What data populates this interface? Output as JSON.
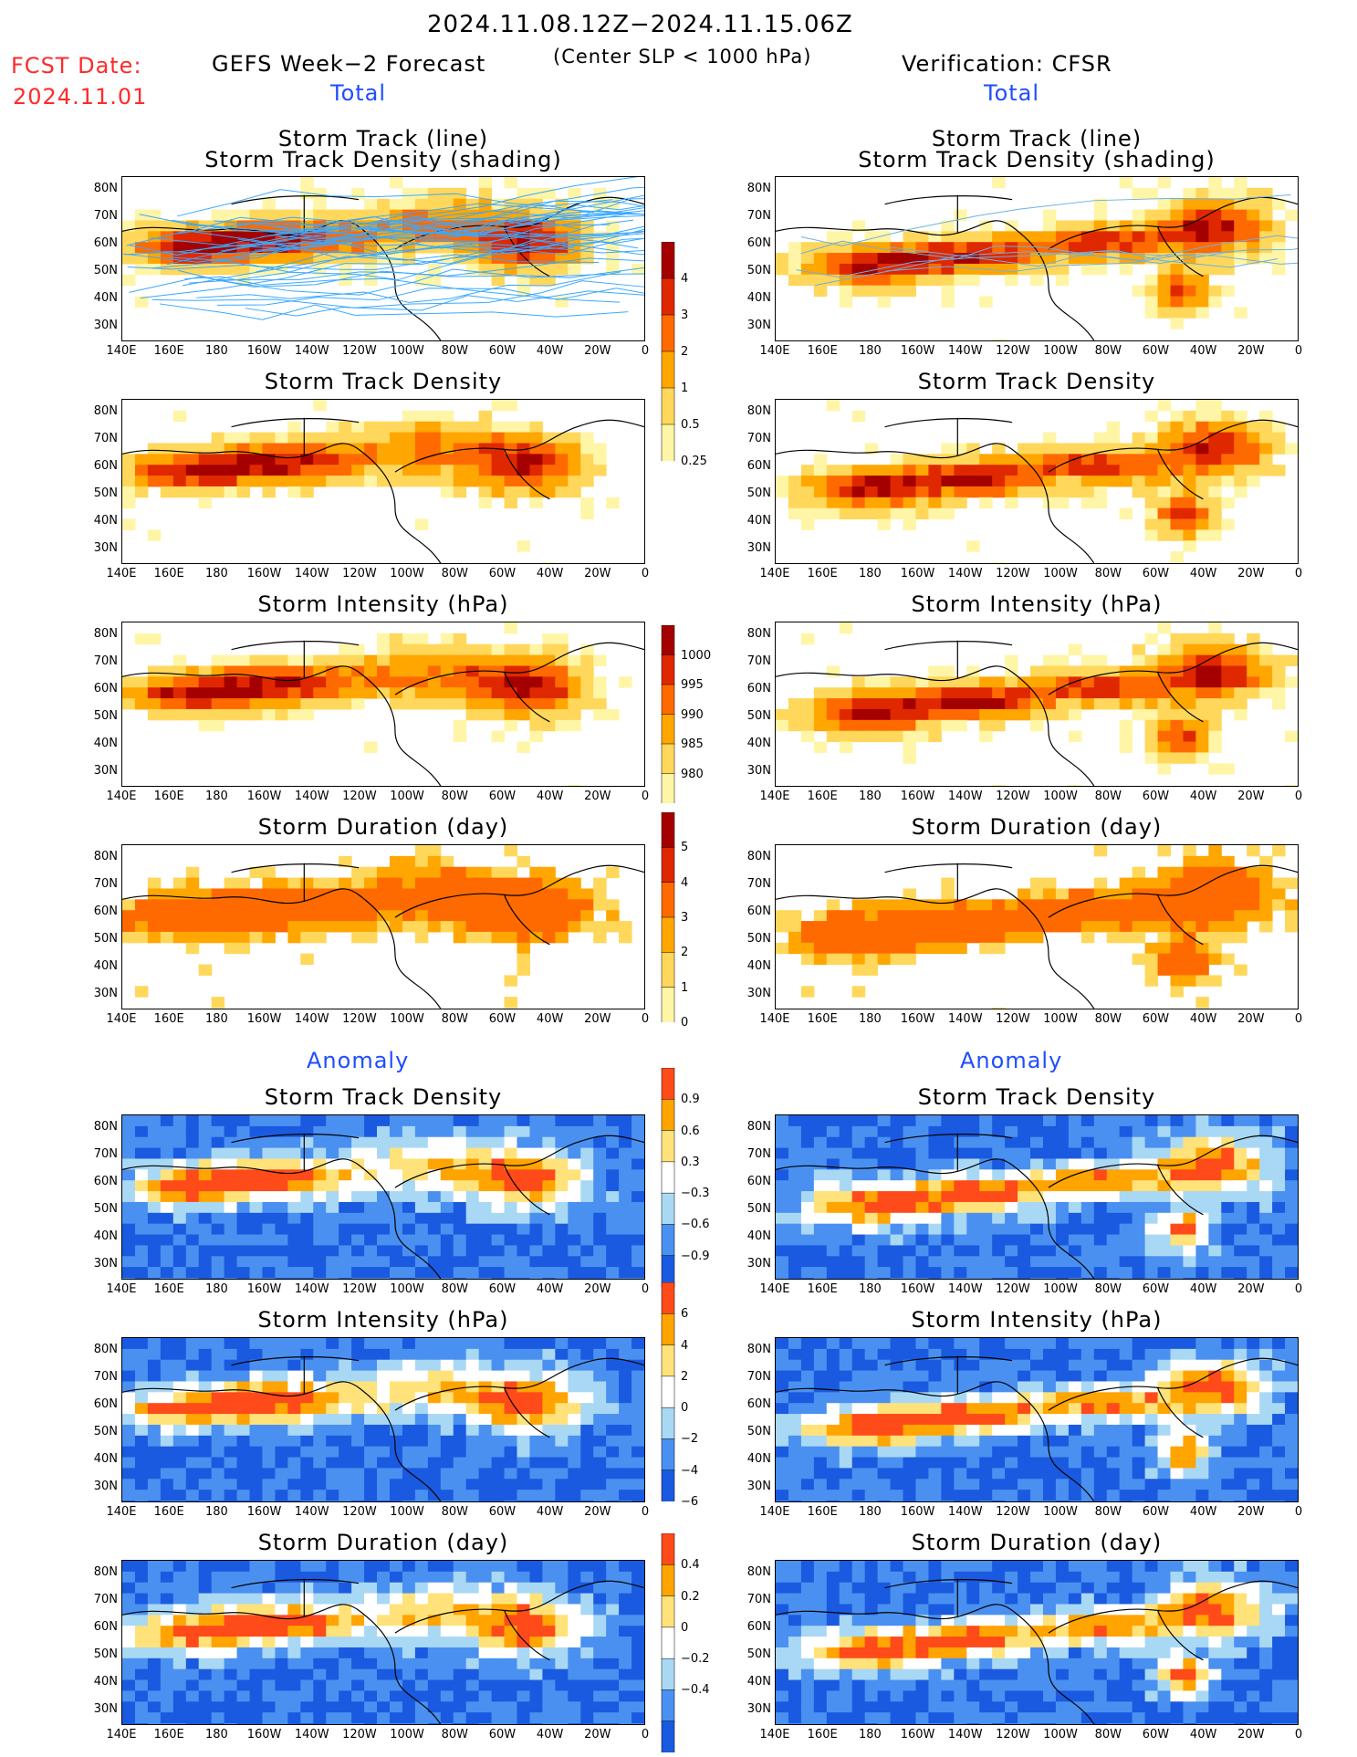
{
  "header": {
    "period": "2024.11.08.12Z−2024.11.15.06Z",
    "fcst_label": "FCST Date:",
    "fcst_date": "2024.11.01",
    "left_title": "GEFS Week−2 Forecast",
    "subtitle": "(Center SLP < 1000 hPa)",
    "right_title": "Verification: CFSR",
    "left_section": "Total",
    "right_section": "Total",
    "anomaly_left": "Anomaly",
    "anomaly_right": "Anomaly"
  },
  "axes": {
    "lat_ticks": [
      "80N",
      "70N",
      "60N",
      "50N",
      "40N",
      "30N"
    ],
    "lon_ticks": [
      "140E",
      "160E",
      "180",
      "160W",
      "140W",
      "120W",
      "100W",
      "80W",
      "60W",
      "40W",
      "20W",
      "0"
    ]
  },
  "colors": {
    "total_scale": [
      "#fff5a6",
      "#ffd75a",
      "#ffa600",
      "#ff6a00",
      "#e02800",
      "#a50000"
    ],
    "anom_scale": [
      "#1a5ae0",
      "#4a90f0",
      "#a9d8f5",
      "#ffffff",
      "#ffe27a",
      "#ffa400",
      "#ff4a1a"
    ],
    "track_forecast": "#3aa8ff",
    "track_verif": "#6db0e0"
  },
  "colorbars": [
    {
      "id": "density",
      "labels": [
        "4",
        "3",
        "2",
        "1",
        "0.5",
        "0.25"
      ]
    },
    {
      "id": "intensity",
      "labels": [
        "1000",
        "995",
        "990",
        "985",
        "980"
      ]
    },
    {
      "id": "duration",
      "labels": [
        "5",
        "4",
        "3",
        "2",
        "1",
        "0"
      ]
    },
    {
      "id": "anom-density",
      "labels": [
        "0.9",
        "0.6",
        "0.3",
        "−0.3",
        "−0.6",
        "−0.9"
      ]
    },
    {
      "id": "anom-intensity",
      "labels": [
        "6",
        "4",
        "2",
        "0",
        "−2",
        "−4",
        "−6"
      ]
    },
    {
      "id": "anom-duration",
      "labels": [
        "0.4",
        "0.2",
        "0",
        "−0.2",
        "−0.4"
      ]
    }
  ],
  "panels": [
    {
      "id": "f-track",
      "title1": "Storm Track (line)",
      "title2": "Storm Track Density (shading)",
      "kind": "total",
      "tracks": true
    },
    {
      "id": "v-track",
      "title1": "Storm Track (line)",
      "title2": "Storm Track Density (shading)",
      "kind": "total",
      "tracks": true
    },
    {
      "id": "f-density",
      "title1": "Storm Track Density",
      "kind": "total"
    },
    {
      "id": "v-density",
      "title1": "Storm Track Density",
      "kind": "total"
    },
    {
      "id": "f-intensity",
      "title1": "Storm Intensity (hPa)",
      "kind": "intensity"
    },
    {
      "id": "v-intensity",
      "title1": "Storm Intensity (hPa)",
      "kind": "intensity"
    },
    {
      "id": "f-duration",
      "title1": "Storm Duration (day)",
      "kind": "duration"
    },
    {
      "id": "v-duration",
      "title1": "Storm Duration (day)",
      "kind": "duration"
    },
    {
      "id": "fa-density",
      "title1": "Storm Track Density",
      "kind": "anom"
    },
    {
      "id": "va-density",
      "title1": "Storm Track Density",
      "kind": "anom"
    },
    {
      "id": "fa-intensity",
      "title1": "Storm Intensity (hPa)",
      "kind": "anom"
    },
    {
      "id": "va-intensity",
      "title1": "Storm Intensity (hPa)",
      "kind": "anom"
    },
    {
      "id": "fa-duration",
      "title1": "Storm Duration (day)",
      "kind": "anom"
    },
    {
      "id": "va-duration",
      "title1": "Storm Duration (day)",
      "kind": "anom"
    }
  ],
  "chart_data": {
    "type": "heatmap",
    "title": "2024.11.08.12Z−2024.11.15.06Z",
    "note": "Gridded map fields rendered as colored cells; values approximated.",
    "lon_range": [
      "140E",
      "0"
    ],
    "lat_range": [
      "25N",
      "85N"
    ]
  }
}
